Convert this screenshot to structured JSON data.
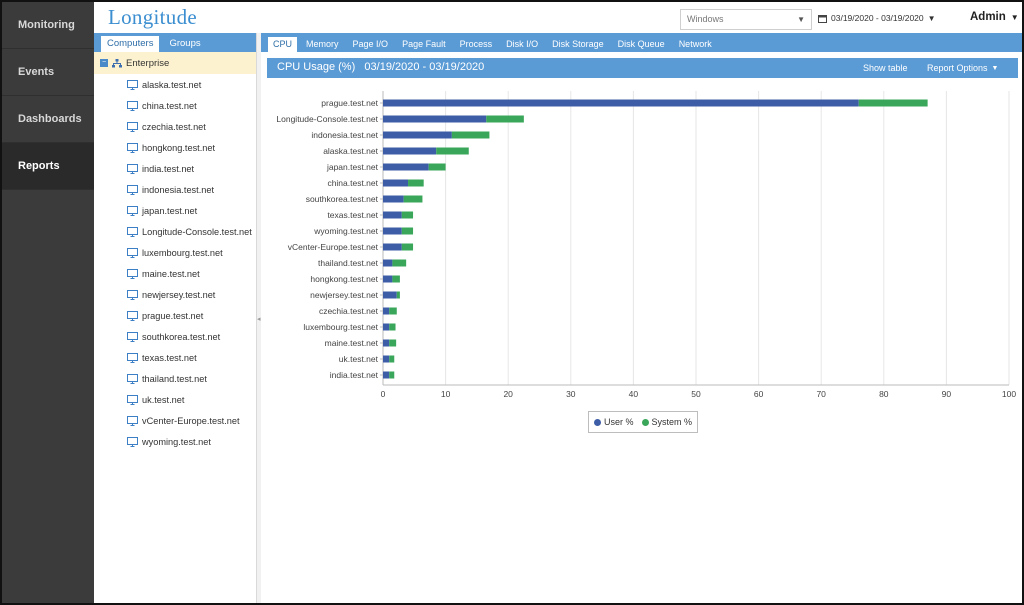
{
  "nav": {
    "items": [
      {
        "label": "Monitoring",
        "active": false
      },
      {
        "label": "Events",
        "active": false
      },
      {
        "label": "Dashboards",
        "active": false
      },
      {
        "label": "Reports",
        "active": true
      }
    ]
  },
  "header": {
    "logo": "Longitude",
    "os_select": "Windows",
    "date_range": "03/19/2020 - 03/19/2020",
    "user": "Admin"
  },
  "sidebar": {
    "tabs": [
      {
        "label": "Computers",
        "active": true
      },
      {
        "label": "Groups",
        "active": false
      }
    ],
    "root": "Enterprise",
    "nodes": [
      "alaska.test.net",
      "china.test.net",
      "czechia.test.net",
      "hongkong.test.net",
      "india.test.net",
      "indonesia.test.net",
      "japan.test.net",
      "Longitude-Console.test.net",
      "luxembourg.test.net",
      "maine.test.net",
      "newjersey.test.net",
      "prague.test.net",
      "southkorea.test.net",
      "texas.test.net",
      "thailand.test.net",
      "uk.test.net",
      "vCenter-Europe.test.net",
      "wyoming.test.net"
    ]
  },
  "main": {
    "tabs": [
      {
        "label": "CPU",
        "active": true
      },
      {
        "label": "Memory",
        "active": false
      },
      {
        "label": "Page I/O",
        "active": false
      },
      {
        "label": "Page Fault",
        "active": false
      },
      {
        "label": "Process",
        "active": false
      },
      {
        "label": "Disk I/O",
        "active": false
      },
      {
        "label": "Disk Storage",
        "active": false
      },
      {
        "label": "Disk Queue",
        "active": false
      },
      {
        "label": "Network",
        "active": false
      }
    ],
    "report_title": "CPU Usage (%)   03/19/2020 - 03/19/2020",
    "show_table": "Show table",
    "report_options": "Report Options"
  },
  "colors": {
    "user": "#3d5da7",
    "system": "#3aa65a",
    "accent": "#5b9bd5"
  },
  "chart_data": {
    "type": "bar",
    "orientation": "horizontal",
    "stacked": true,
    "categories": [
      "prague.test.net",
      "Longitude-Console.test.net",
      "indonesia.test.net",
      "alaska.test.net",
      "japan.test.net",
      "china.test.net",
      "southkorea.test.net",
      "texas.test.net",
      "wyoming.test.net",
      "vCenter-Europe.test.net",
      "thailand.test.net",
      "hongkong.test.net",
      "newjersey.test.net",
      "czechia.test.net",
      "luxembourg.test.net",
      "maine.test.net",
      "uk.test.net",
      "india.test.net"
    ],
    "series": [
      {
        "name": "User %",
        "values": [
          76,
          16.5,
          11,
          8.5,
          7.3,
          4,
          3.3,
          3,
          3,
          3,
          1.5,
          1.5,
          2.2,
          1,
          1,
          1,
          1,
          1
        ]
      },
      {
        "name": "System %",
        "values": [
          11,
          6,
          6,
          5.2,
          2.7,
          2.5,
          3,
          1.8,
          1.8,
          1.8,
          2.2,
          1.2,
          0.5,
          1.2,
          1,
          1.1,
          0.8,
          0.8
        ]
      }
    ],
    "xlim": [
      0,
      100
    ],
    "xticks": [
      0,
      10,
      20,
      30,
      40,
      50,
      60,
      70,
      80,
      90,
      100
    ],
    "grid": true,
    "legend": "bottom"
  }
}
